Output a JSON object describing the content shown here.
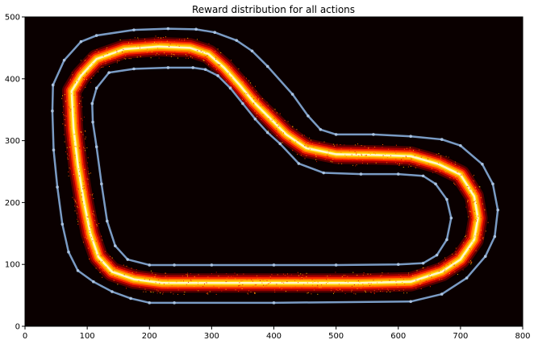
{
  "chart_data": {
    "type": "heatmap",
    "title": "Reward distribution for all actions",
    "xlabel": "",
    "ylabel": "",
    "xlim": [
      0,
      800
    ],
    "ylim": [
      0,
      500
    ],
    "x_ticks": [
      0,
      100,
      200,
      300,
      400,
      500,
      600,
      700,
      800
    ],
    "y_ticks": [
      0,
      100,
      200,
      300,
      400,
      500
    ],
    "grid": false,
    "colormap": "hot",
    "background_color": "#0a0000",
    "track_color": "#7a9bc4",
    "track_outer": [
      [
        45,
        390
      ],
      [
        63,
        430
      ],
      [
        90,
        460
      ],
      [
        115,
        470
      ],
      [
        175,
        479
      ],
      [
        230,
        481
      ],
      [
        275,
        480
      ],
      [
        305,
        475
      ],
      [
        340,
        462
      ],
      [
        365,
        445
      ],
      [
        390,
        420
      ],
      [
        430,
        375
      ],
      [
        455,
        340
      ],
      [
        475,
        318
      ],
      [
        500,
        310
      ],
      [
        560,
        310
      ],
      [
        620,
        307
      ],
      [
        670,
        302
      ],
      [
        700,
        292
      ],
      [
        735,
        262
      ],
      [
        752,
        230
      ],
      [
        760,
        188
      ],
      [
        755,
        145
      ],
      [
        740,
        113
      ],
      [
        710,
        78
      ],
      [
        670,
        52
      ],
      [
        620,
        40
      ],
      [
        400,
        38
      ],
      [
        240,
        38
      ],
      [
        200,
        38
      ],
      [
        170,
        45
      ],
      [
        140,
        56
      ],
      [
        110,
        72
      ],
      [
        85,
        90
      ],
      [
        70,
        120
      ],
      [
        60,
        165
      ],
      [
        52,
        225
      ],
      [
        46,
        285
      ],
      [
        44,
        348
      ],
      [
        45,
        390
      ]
    ],
    "track_inner": [
      [
        108,
        360
      ],
      [
        115,
        385
      ],
      [
        135,
        410
      ],
      [
        175,
        416
      ],
      [
        230,
        418
      ],
      [
        270,
        418
      ],
      [
        290,
        415
      ],
      [
        310,
        405
      ],
      [
        330,
        385
      ],
      [
        350,
        360
      ],
      [
        370,
        335
      ],
      [
        390,
        313
      ],
      [
        410,
        295
      ],
      [
        440,
        263
      ],
      [
        480,
        248
      ],
      [
        540,
        246
      ],
      [
        600,
        246
      ],
      [
        640,
        243
      ],
      [
        660,
        230
      ],
      [
        678,
        205
      ],
      [
        685,
        175
      ],
      [
        678,
        140
      ],
      [
        662,
        115
      ],
      [
        640,
        102
      ],
      [
        600,
        100
      ],
      [
        500,
        99
      ],
      [
        400,
        99
      ],
      [
        300,
        99
      ],
      [
        240,
        99
      ],
      [
        200,
        99
      ],
      [
        165,
        108
      ],
      [
        145,
        130
      ],
      [
        132,
        170
      ],
      [
        123,
        230
      ],
      [
        115,
        290
      ],
      [
        109,
        330
      ],
      [
        108,
        360
      ]
    ],
    "center_line": [
      [
        75,
        380
      ],
      [
        90,
        405
      ],
      [
        115,
        432
      ],
      [
        160,
        448
      ],
      [
        215,
        452
      ],
      [
        265,
        450
      ],
      [
        295,
        440
      ],
      [
        320,
        418
      ],
      [
        345,
        390
      ],
      [
        368,
        362
      ],
      [
        392,
        338
      ],
      [
        420,
        310
      ],
      [
        452,
        288
      ],
      [
        500,
        278
      ],
      [
        560,
        277
      ],
      [
        620,
        275
      ],
      [
        665,
        262
      ],
      [
        700,
        245
      ],
      [
        722,
        210
      ],
      [
        728,
        175
      ],
      [
        722,
        140
      ],
      [
        700,
        108
      ],
      [
        670,
        88
      ],
      [
        620,
        72
      ],
      [
        540,
        70
      ],
      [
        400,
        70
      ],
      [
        300,
        70
      ],
      [
        220,
        70
      ],
      [
        175,
        76
      ],
      [
        140,
        88
      ],
      [
        118,
        112
      ],
      [
        105,
        150
      ],
      [
        95,
        200
      ],
      [
        85,
        260
      ],
      [
        78,
        320
      ],
      [
        75,
        380
      ]
    ],
    "reward_band_halfwidth": 12
  }
}
